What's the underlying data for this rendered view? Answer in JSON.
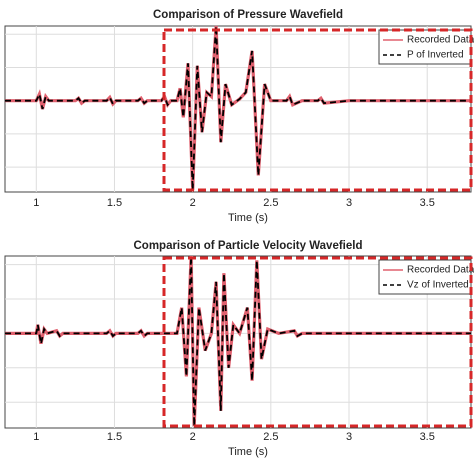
{
  "chart_data": [
    {
      "type": "line",
      "title": "Comparison of Pressure Wavefield",
      "x_label": "Time (s)",
      "x": [
        0.8,
        1.0,
        1.02,
        1.04,
        1.06,
        1.08,
        1.25,
        1.27,
        1.29,
        1.31,
        1.45,
        1.47,
        1.49,
        1.51,
        1.65,
        1.67,
        1.69,
        1.71,
        1.8,
        1.82,
        1.84,
        1.86,
        1.9,
        1.92,
        1.94,
        1.97,
        2.0,
        2.03,
        2.06,
        2.09,
        2.12,
        2.15,
        2.18,
        2.21,
        2.25,
        2.3,
        2.34,
        2.38,
        2.42,
        2.46,
        2.5,
        2.6,
        2.62,
        2.64,
        2.7,
        2.8,
        2.82,
        2.84,
        3.0,
        3.78
      ],
      "series": [
        {
          "name": "Recorded Data",
          "color": "#e0606e",
          "linestyle": "solid",
          "values": [
            0,
            0,
            0.08,
            -0.1,
            0.05,
            0,
            0,
            0.03,
            -0.03,
            0,
            0,
            0.04,
            -0.04,
            0,
            0,
            0.03,
            -0.03,
            0,
            0,
            0.05,
            -0.05,
            0,
            0,
            0.15,
            -0.2,
            0.45,
            -1.08,
            0.42,
            -0.38,
            0.1,
            0.05,
            0.9,
            -0.5,
            0.2,
            -0.05,
            0.02,
            0.1,
            0.6,
            -0.9,
            0.2,
            0,
            0,
            0.05,
            -0.05,
            0,
            0,
            0.03,
            -0.03,
            0,
            0
          ]
        },
        {
          "name": "P of Inverted",
          "color": "#000000",
          "linestyle": "dashed",
          "values": [
            0,
            0,
            0.08,
            -0.1,
            0.05,
            0,
            0,
            0.03,
            -0.03,
            0,
            0,
            0.04,
            -0.04,
            0,
            0,
            0.03,
            -0.03,
            0,
            0,
            0.05,
            -0.05,
            0,
            0,
            0.15,
            -0.2,
            0.45,
            -1.08,
            0.42,
            -0.38,
            0.1,
            0.05,
            0.9,
            -0.5,
            0.2,
            -0.05,
            0.02,
            0.1,
            0.6,
            -0.9,
            0.2,
            0,
            0,
            0.05,
            -0.05,
            0,
            0,
            0.03,
            -0.03,
            0,
            0
          ]
        }
      ],
      "xlim": [
        0.8,
        3.78
      ],
      "xticks": [
        1,
        1.5,
        2,
        2.5,
        3,
        3.5
      ],
      "ylim": [
        -1.1,
        0.9
      ],
      "yticks": [
        -0.8,
        -0.4,
        0,
        0.4,
        0.8
      ],
      "grid": true,
      "legend": "upper right"
    },
    {
      "type": "line",
      "title": "Comparison of Particle Velocity Wavefield",
      "x_label": "Time (s)",
      "x": [
        0.8,
        1.0,
        1.01,
        1.03,
        1.05,
        1.07,
        1.13,
        1.15,
        1.17,
        1.45,
        1.47,
        1.49,
        1.51,
        1.65,
        1.67,
        1.69,
        1.71,
        1.9,
        1.93,
        1.96,
        1.99,
        2.01,
        2.04,
        2.08,
        2.12,
        2.15,
        2.18,
        2.2,
        2.23,
        2.26,
        2.3,
        2.35,
        2.38,
        2.41,
        2.44,
        2.48,
        2.55,
        2.65,
        2.67,
        2.7,
        3.0,
        3.78
      ],
      "series": [
        {
          "name": "Recorded Data",
          "color": "#e0606e",
          "linestyle": "solid",
          "values": [
            0,
            0,
            0.1,
            -0.12,
            0.05,
            0,
            0.03,
            -0.03,
            0,
            0,
            0.03,
            -0.03,
            0,
            0,
            0.03,
            -0.03,
            0,
            0,
            0.3,
            -0.5,
            0.9,
            -1.08,
            0.3,
            -0.2,
            0,
            0.6,
            -0.9,
            0.7,
            -0.4,
            0.1,
            0,
            0.3,
            -0.55,
            0.85,
            -0.3,
            0.05,
            0,
            0.03,
            -0.03,
            0,
            0,
            0
          ]
        },
        {
          "name": "Vz of Inverted",
          "color": "#000000",
          "linestyle": "dashed",
          "values": [
            0,
            0,
            0.1,
            -0.12,
            0.05,
            0,
            0.03,
            -0.03,
            0,
            0,
            0.03,
            -0.03,
            0,
            0,
            0.03,
            -0.03,
            0,
            0,
            0.3,
            -0.5,
            0.9,
            -1.08,
            0.3,
            -0.2,
            0,
            0.6,
            -0.9,
            0.7,
            -0.4,
            0.1,
            0,
            0.3,
            -0.55,
            0.85,
            -0.3,
            0.05,
            0,
            0.03,
            -0.03,
            0,
            0,
            0
          ]
        }
      ],
      "xlim": [
        0.8,
        3.78
      ],
      "xticks": [
        1,
        1.5,
        2,
        2.5,
        3,
        3.5
      ],
      "ylim": [
        -1.1,
        0.9
      ],
      "yticks": [
        -0.8,
        -0.4,
        0,
        0.4,
        0.8
      ],
      "grid": true,
      "legend": "upper right"
    }
  ]
}
